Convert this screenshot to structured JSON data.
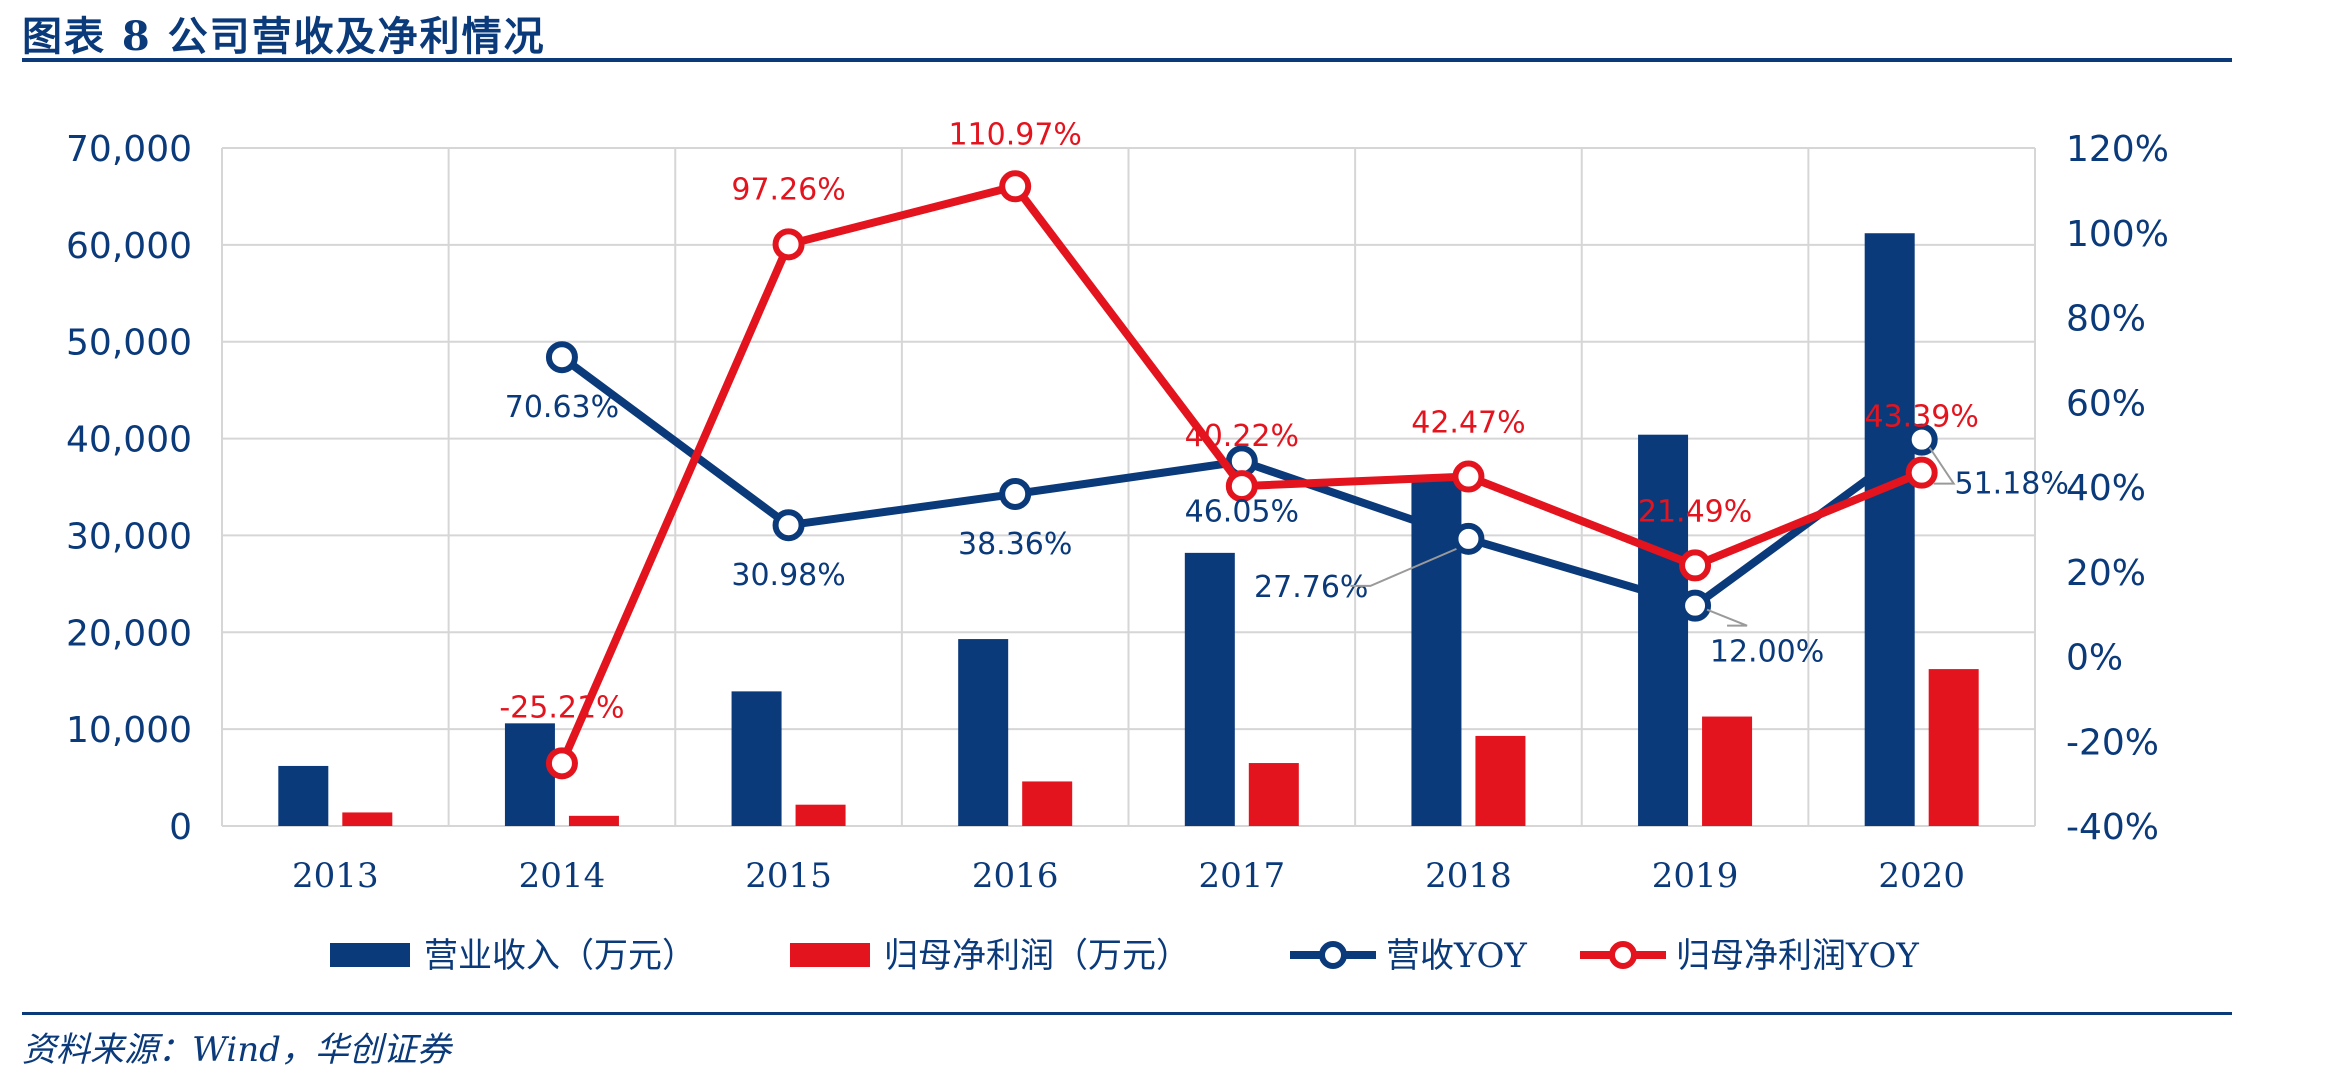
{
  "header": {
    "title": "图表 8   公司营收及净利情况"
  },
  "footer": {
    "source": "资料来源：Wind，华创证券"
  },
  "colors": {
    "navy": "#0b3a7b",
    "red": "#e3141e",
    "grid": "#d6d6d6",
    "leader": "#9a9a9a"
  },
  "chart_data": {
    "type": "bar+line",
    "categories": [
      "2013",
      "2014",
      "2015",
      "2016",
      "2017",
      "2018",
      "2019",
      "2020"
    ],
    "y_left": {
      "range": [
        0,
        70000
      ],
      "ticks": [
        "0",
        "10,000",
        "20,000",
        "30,000",
        "40,000",
        "50,000",
        "60,000",
        "70,000"
      ]
    },
    "y_right": {
      "range": [
        -40,
        120
      ],
      "ticks": [
        "-40%",
        "-20%",
        "0%",
        "20%",
        "40%",
        "60%",
        "80%",
        "100%",
        "120%"
      ]
    },
    "grid": true,
    "legend_position": "bottom",
    "series": [
      {
        "name": "营业收入（万元）",
        "type": "bar",
        "axis": "left",
        "color": "#0b3a7b",
        "values": [
          6200,
          10600,
          13900,
          19300,
          28200,
          35800,
          40400,
          61200
        ]
      },
      {
        "name": "归母净利润（万元）",
        "type": "bar",
        "axis": "left",
        "color": "#e3141e",
        "values": [
          1400,
          1050,
          2200,
          4600,
          6500,
          9300,
          11300,
          16200
        ]
      },
      {
        "name": "营收YOY",
        "type": "line",
        "axis": "right",
        "color": "#0b3a7b",
        "values": [
          null,
          70.63,
          30.98,
          38.36,
          46.05,
          27.76,
          12.0,
          51.18
        ],
        "labels": [
          "",
          "70.63%",
          "30.98%",
          "38.36%",
          "46.05%",
          "27.76%",
          "12.00%",
          "51.18%"
        ]
      },
      {
        "name": "归母净利润YOY",
        "type": "line",
        "axis": "right",
        "color": "#e3141e",
        "values": [
          null,
          -25.21,
          97.26,
          110.97,
          40.22,
          42.47,
          21.49,
          43.39
        ],
        "labels": [
          "",
          "-25.21%",
          "97.26%",
          "110.97%",
          "40.22%",
          "42.47%",
          "21.49%",
          "43.39%"
        ]
      }
    ]
  }
}
